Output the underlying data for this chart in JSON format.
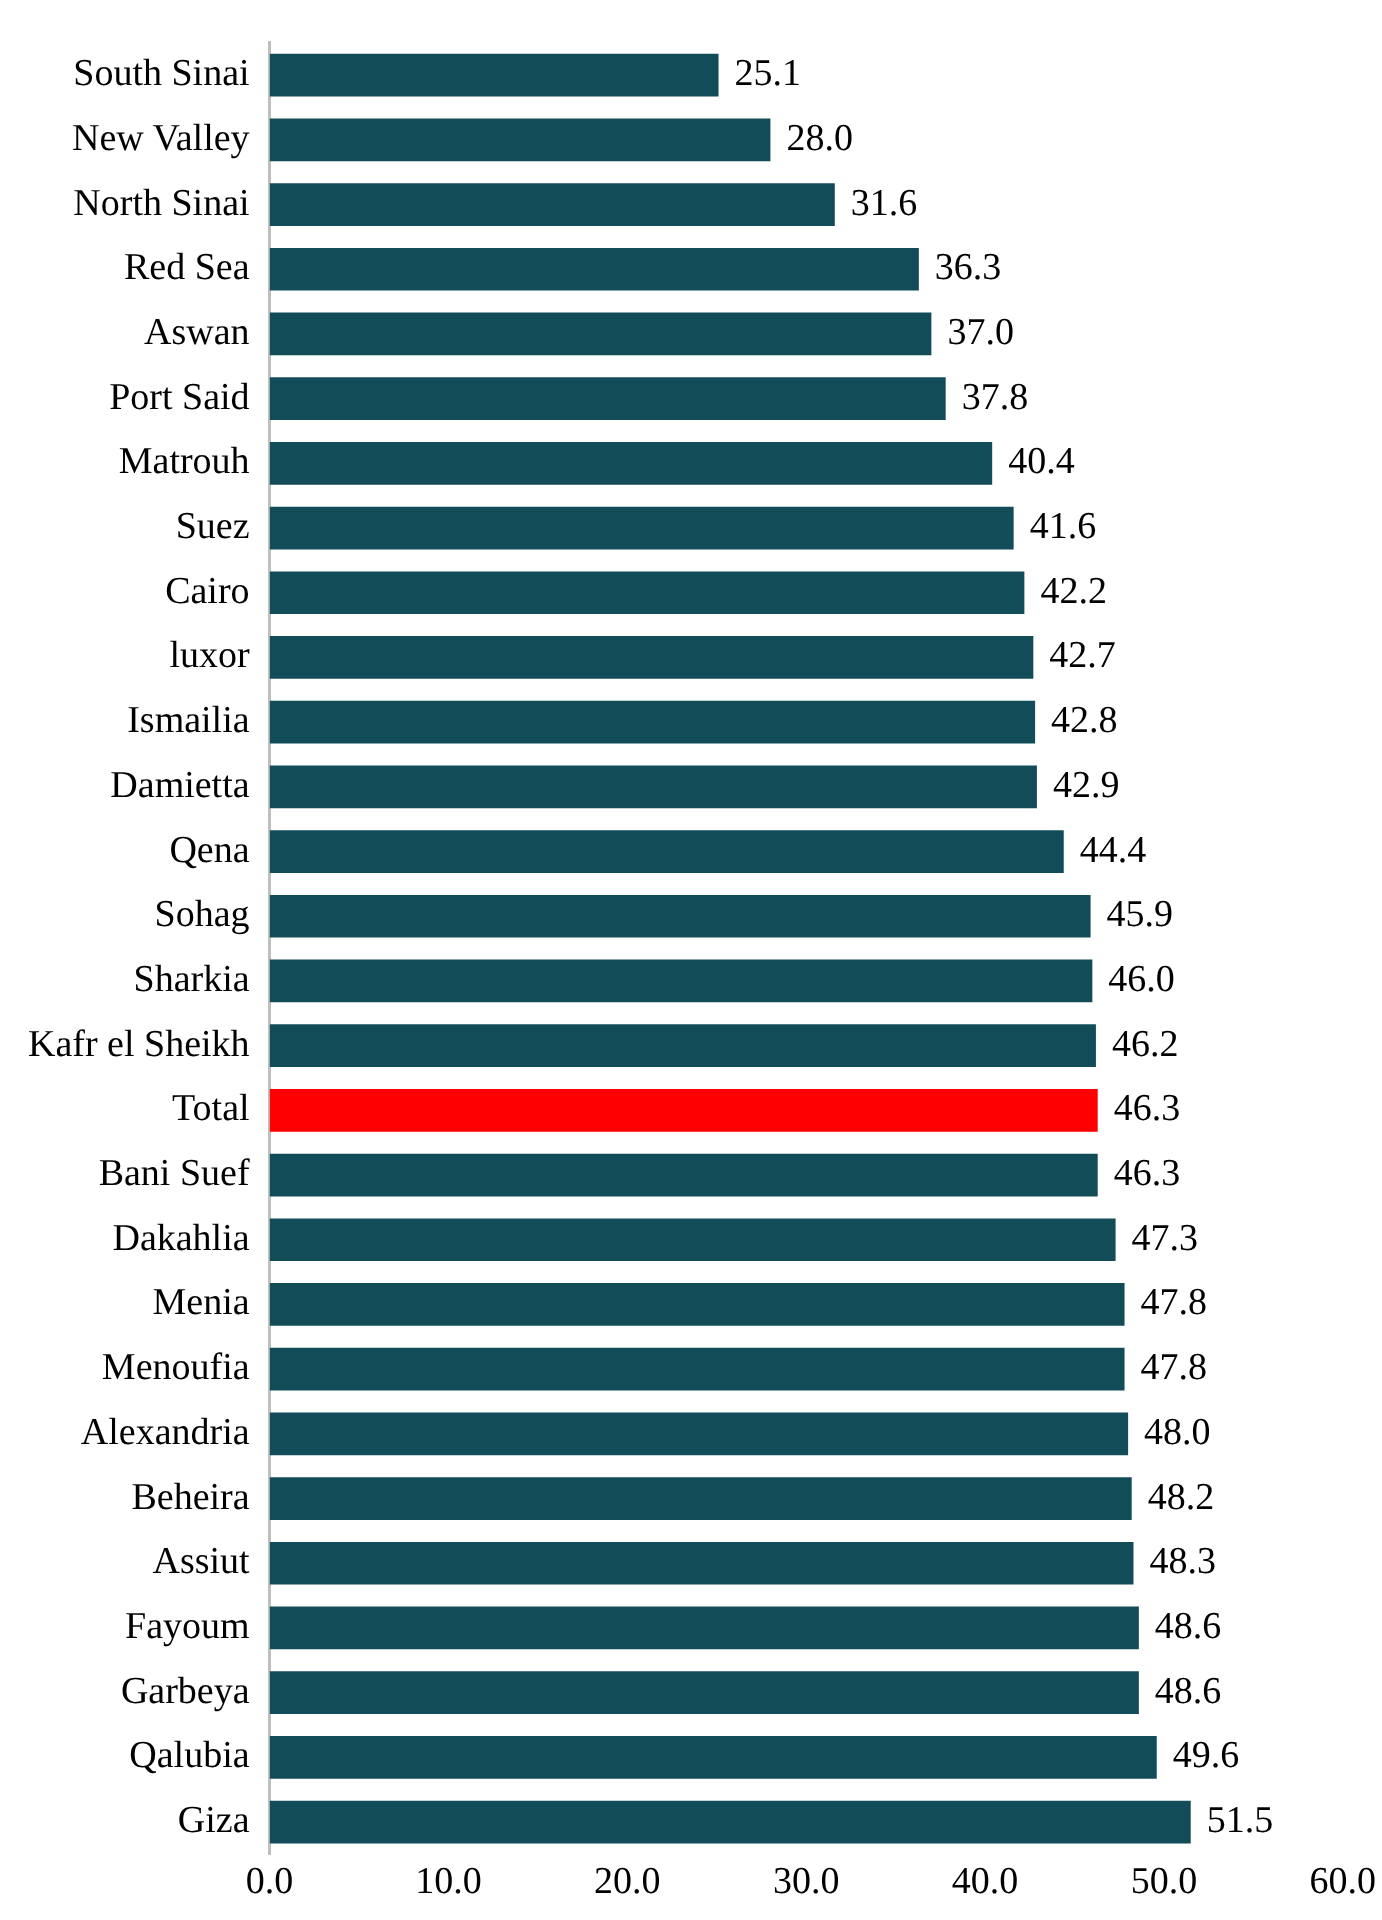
{
  "chart_data": {
    "type": "bar",
    "orientation": "horizontal",
    "categories": [
      "South Sinai",
      "New Valley",
      "North Sinai",
      "Red Sea",
      "Aswan",
      "Port Said",
      "Matrouh",
      "Suez",
      "Cairo",
      "luxor",
      "Ismailia",
      "Damietta",
      "Qena",
      "Sohag",
      "Sharkia",
      "Kafr el Sheikh",
      "Total",
      "Bani Suef",
      "Dakahlia",
      "Menia",
      "Menoufia",
      "Alexandria",
      "Beheira",
      "Assiut",
      "Fayoum",
      "Garbeya",
      "Qalubia",
      "Giza"
    ],
    "values": [
      25.1,
      28.0,
      31.6,
      36.3,
      37.0,
      37.8,
      40.4,
      41.6,
      42.2,
      42.7,
      42.8,
      42.9,
      44.4,
      45.9,
      46.0,
      46.2,
      46.3,
      46.3,
      47.3,
      47.8,
      47.8,
      48.0,
      48.2,
      48.3,
      48.6,
      48.6,
      49.6,
      51.5
    ],
    "value_labels": [
      "25.1",
      "28.0",
      "31.6",
      "36.3",
      "37.0",
      "37.8",
      "40.4",
      "41.6",
      "42.2",
      "42.7",
      "42.8",
      "42.9",
      "44.4",
      "45.9",
      "46.0",
      "46.2",
      "46.3",
      "46.3",
      "47.3",
      "47.8",
      "47.8",
      "48.0",
      "48.2",
      "48.3",
      "48.6",
      "48.6",
      "49.6",
      "51.5"
    ],
    "colors": [
      "#124c58",
      "#124c58",
      "#124c58",
      "#124c58",
      "#124c58",
      "#124c58",
      "#124c58",
      "#124c58",
      "#124c58",
      "#124c58",
      "#124c58",
      "#124c58",
      "#124c58",
      "#124c58",
      "#124c58",
      "#124c58",
      "#ff0000",
      "#124c58",
      "#124c58",
      "#124c58",
      "#124c58",
      "#124c58",
      "#124c58",
      "#124c58",
      "#124c58",
      "#124c58",
      "#124c58",
      "#124c58"
    ],
    "xlim": [
      0,
      60
    ],
    "xticks": [
      {
        "value": 0,
        "label": "0.0"
      },
      {
        "value": 10,
        "label": "10.0"
      },
      {
        "value": 20,
        "label": "20.0"
      },
      {
        "value": 30,
        "label": "30.0"
      },
      {
        "value": 40,
        "label": "40.0"
      },
      {
        "value": 50,
        "label": "50.0"
      },
      {
        "value": 60,
        "label": "60.0"
      }
    ],
    "grid": false,
    "legend": false
  }
}
